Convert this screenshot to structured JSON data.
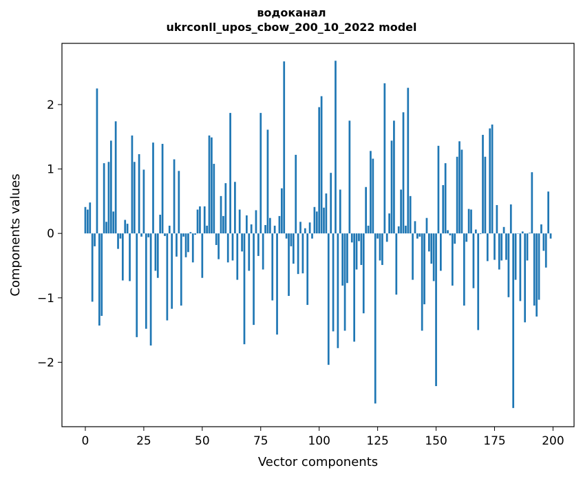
{
  "chart_data": {
    "type": "bar",
    "title": "водоканал",
    "subtitle": "ukrconll_upos_cbow_200_10_2022 model",
    "xlabel": "Vector components",
    "ylabel": "Components values",
    "xlim": [
      -10,
      209
    ],
    "ylim": [
      -3.0,
      2.95
    ],
    "xticks": [
      0,
      25,
      50,
      75,
      100,
      125,
      150,
      175,
      200
    ],
    "yticks": [
      -2,
      -1,
      0,
      1,
      2
    ],
    "bar_color": "#1f77b4",
    "grid": false,
    "values": [
      0.41,
      0.37,
      0.48,
      -1.06,
      -0.2,
      2.25,
      -1.43,
      -1.28,
      1.09,
      0.18,
      1.11,
      1.44,
      0.34,
      1.74,
      -0.24,
      -0.08,
      -0.73,
      0.21,
      0.15,
      -0.74,
      1.52,
      1.11,
      -1.61,
      1.23,
      -0.05,
      0.99,
      -1.48,
      -0.06,
      -1.74,
      1.41,
      -0.58,
      -0.69,
      0.29,
      1.39,
      -0.04,
      -1.35,
      0.12,
      -1.17,
      1.15,
      -0.36,
      0.97,
      -1.12,
      -0.05,
      -0.37,
      -0.29,
      0.02,
      -0.45,
      -0.02,
      0.37,
      0.42,
      -0.69,
      0.42,
      0.12,
      1.52,
      1.49,
      1.08,
      -0.18,
      -0.4,
      0.58,
      0.27,
      0.78,
      -0.45,
      1.87,
      -0.42,
      0.8,
      -0.72,
      0.37,
      -0.28,
      -1.72,
      0.28,
      -0.58,
      0.14,
      -1.42,
      0.36,
      -0.35,
      1.87,
      -0.56,
      0.13,
      1.61,
      0.24,
      -1.04,
      0.12,
      -1.57,
      0.27,
      0.7,
      2.67,
      -0.08,
      -0.97,
      -0.2,
      -0.47,
      1.22,
      -0.63,
      0.18,
      -0.62,
      0.08,
      -1.11,
      0.17,
      -0.08,
      0.41,
      0.34,
      1.96,
      2.13,
      0.4,
      0.62,
      -2.04,
      0.94,
      -1.52,
      2.68,
      -1.78,
      0.68,
      -0.81,
      -1.51,
      -0.77,
      1.75,
      -0.14,
      -1.68,
      -0.56,
      -0.12,
      -0.49,
      -1.24,
      0.72,
      0.12,
      1.28,
      1.16,
      -2.64,
      -0.08,
      -0.42,
      -0.49,
      2.33,
      -0.13,
      0.31,
      1.44,
      1.75,
      -0.95,
      0.11,
      0.68,
      1.88,
      0.12,
      2.26,
      0.58,
      -0.72,
      0.19,
      -0.08,
      -0.05,
      -1.51,
      -1.1,
      0.24,
      -0.28,
      -0.47,
      -0.74,
      -2.37,
      1.36,
      -0.58,
      0.75,
      1.09,
      0.05,
      -0.03,
      -0.81,
      -0.16,
      1.19,
      1.43,
      1.3,
      -1.12,
      -0.13,
      0.38,
      0.37,
      -0.85,
      0.06,
      -1.5,
      -0.01,
      1.53,
      1.19,
      -0.43,
      1.63,
      1.69,
      -0.41,
      0.44,
      -0.56,
      -0.42,
      0.1,
      -0.41,
      -0.99,
      0.45,
      -2.71,
      -0.72,
      0.0,
      -1.05,
      0.03,
      -1.38,
      -0.42,
      0.01,
      0.95,
      -1.12,
      -1.29,
      -1.03,
      0.14,
      -0.27,
      -0.53,
      0.65,
      -0.08
    ]
  }
}
